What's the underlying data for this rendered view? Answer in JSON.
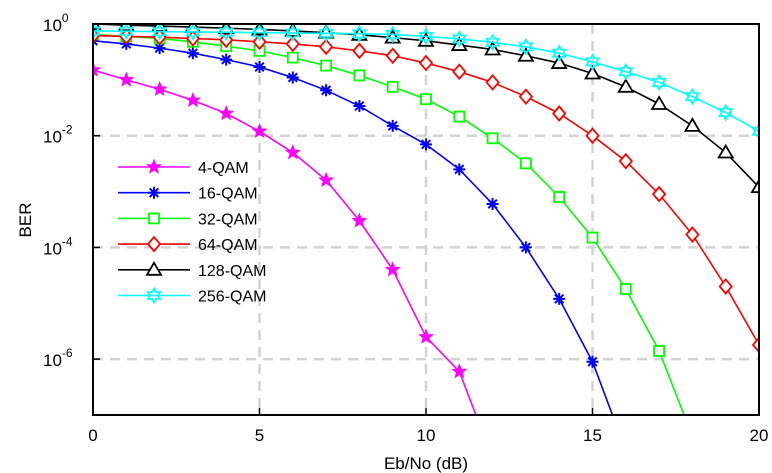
{
  "chart_data": {
    "type": "line",
    "title": "",
    "xlabel": "Eb/No (dB)",
    "ylabel": "BER",
    "xlim": [
      0,
      20
    ],
    "ylim": [
      1e-07,
      1
    ],
    "yscale": "log",
    "grid": true,
    "legend_position": "left",
    "x_ticks": [
      "0",
      "5",
      "10",
      "15",
      "20"
    ],
    "y_ticks": [
      {
        "base": "10",
        "exp": "0",
        "value": 1
      },
      {
        "base": "10",
        "exp": "-2",
        "value": 0.01
      },
      {
        "base": "10",
        "exp": "-4",
        "value": 0.0001
      },
      {
        "base": "10",
        "exp": "-6",
        "value": 1e-06
      }
    ],
    "series": [
      {
        "name": "4-QAM",
        "color": "#ff00ff",
        "marker": "star5",
        "x": [
          0,
          1,
          2,
          3,
          4,
          5,
          6,
          7,
          8,
          9,
          10,
          11,
          11.5
        ],
        "y": [
          0.15,
          0.1,
          0.068,
          0.043,
          0.025,
          0.012,
          0.005,
          0.0016,
          0.0003,
          4e-05,
          2.5e-06,
          6e-07,
          1e-07
        ]
      },
      {
        "name": "16-QAM",
        "color": "#0000ff",
        "marker": "asterisk",
        "x": [
          0,
          1,
          2,
          3,
          4,
          5,
          6,
          7,
          8,
          9,
          10,
          11,
          12,
          13,
          14,
          15,
          15.6
        ],
        "y": [
          0.5,
          0.44,
          0.37,
          0.3,
          0.23,
          0.17,
          0.11,
          0.065,
          0.034,
          0.015,
          0.007,
          0.0025,
          0.0006,
          0.0001,
          1.2e-05,
          9e-07,
          1e-07
        ]
      },
      {
        "name": "32-QAM",
        "color": "#00ff00",
        "marker": "square",
        "x": [
          0,
          1,
          2,
          3,
          4,
          5,
          6,
          7,
          8,
          9,
          10,
          11,
          12,
          13,
          14,
          15,
          16,
          17,
          17.75
        ],
        "y": [
          0.65,
          0.6,
          0.55,
          0.48,
          0.4,
          0.33,
          0.25,
          0.18,
          0.12,
          0.075,
          0.045,
          0.022,
          0.009,
          0.0032,
          0.0008,
          0.00015,
          1.8e-05,
          1.4e-06,
          1e-07
        ]
      },
      {
        "name": "64-QAM",
        "color": "#ff0000",
        "marker": "diamond",
        "x": [
          0,
          1,
          2,
          3,
          4,
          5,
          6,
          7,
          8,
          9,
          10,
          11,
          12,
          13,
          14,
          15,
          16,
          17,
          18,
          19,
          20
        ],
        "y": [
          0.62,
          0.6,
          0.58,
          0.55,
          0.52,
          0.48,
          0.44,
          0.39,
          0.33,
          0.27,
          0.2,
          0.14,
          0.09,
          0.05,
          0.025,
          0.01,
          0.0035,
          0.0009,
          0.00017,
          2e-05,
          1.8e-06
        ]
      },
      {
        "name": "128-QAM",
        "color": "#000000",
        "marker": "triangle",
        "x": [
          0,
          1,
          2,
          3,
          4,
          5,
          6,
          7,
          8,
          9,
          10,
          11,
          12,
          13,
          14,
          15,
          16,
          17,
          18,
          19,
          20
        ],
        "y": [
          1,
          0.95,
          0.92,
          0.88,
          0.84,
          0.8,
          0.75,
          0.7,
          0.64,
          0.57,
          0.5,
          0.42,
          0.35,
          0.27,
          0.2,
          0.13,
          0.075,
          0.037,
          0.015,
          0.005,
          0.0012
        ]
      },
      {
        "name": "256-QAM",
        "color": "#00ffff",
        "marker": "star6",
        "x": [
          0,
          1,
          2,
          3,
          4,
          5,
          6,
          7,
          8,
          9,
          10,
          11,
          12,
          13,
          14,
          15,
          16,
          17,
          18,
          19,
          20
        ],
        "y": [
          0.75,
          0.74,
          0.73,
          0.72,
          0.71,
          0.7,
          0.69,
          0.68,
          0.67,
          0.65,
          0.6,
          0.54,
          0.47,
          0.39,
          0.3,
          0.21,
          0.14,
          0.09,
          0.05,
          0.026,
          0.012
        ]
      }
    ]
  }
}
